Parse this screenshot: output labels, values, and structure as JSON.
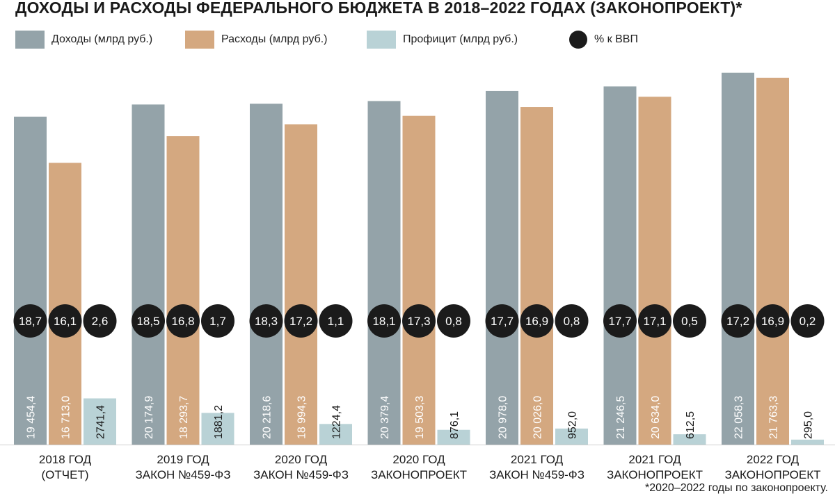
{
  "title": "ДОХОДЫ И РАСХОДЫ ФЕДЕРАЛЬНОГО БЮДЖЕТА В 2018–2022 ГОДАХ (ЗАКОНОПРОЕКТ)*",
  "legend": {
    "income": "Доходы (млрд руб.)",
    "expense": "Расходы (млрд руб.)",
    "surplus": "Профицит (млрд руб.)",
    "gdp": "% к ВВП"
  },
  "colors": {
    "income": "#94a3a9",
    "expense": "#d4a880",
    "surplus": "#b9d2d6",
    "gdp": "#1b1b1b"
  },
  "footnote": "*2020–2022 годы по законопроекту.",
  "chart_data": {
    "type": "bar",
    "title": "ДОХОДЫ И РАСХОДЫ ФЕДЕРАЛЬНОГО БЮДЖЕТА В 2018–2022 ГОДАХ (ЗАКОНОПРОЕКТ)*",
    "categories": [
      [
        "2018 ГОД",
        "(ОТЧЕТ)"
      ],
      [
        "2019 ГОД",
        "ЗАКОН №459-ФЗ"
      ],
      [
        "2020 ГОД",
        "ЗАКОН №459-ФЗ"
      ],
      [
        "2020 ГОД",
        "ЗАКОНОПРОЕКТ"
      ],
      [
        "2021 ГОД",
        "ЗАКОН №459-ФЗ"
      ],
      [
        "2021 ГОД",
        "ЗАКОНОПРОЕКТ"
      ],
      [
        "2022 ГОД",
        "ЗАКОНОПРОЕКТ"
      ]
    ],
    "series": [
      {
        "name": "Доходы (млрд руб.)",
        "key": "income",
        "values": [
          19454.4,
          20174.9,
          20218.6,
          20379.4,
          20978.0,
          21246.5,
          22058.3
        ],
        "labels": [
          "19 454,4",
          "20 174,9",
          "20 218,6",
          "20 379,4",
          "20 978,0",
          "21 246,5",
          "22 058,3"
        ],
        "gdp_pct": [
          "18,7",
          "18,5",
          "18,3",
          "18,1",
          "17,7",
          "17,7",
          "17,2"
        ]
      },
      {
        "name": "Расходы (млрд руб.)",
        "key": "expense",
        "values": [
          16713.0,
          18293.7,
          18994.3,
          19503.3,
          20026.0,
          20634.0,
          21763.3
        ],
        "labels": [
          "16 713,0",
          "18 293,7",
          "18 994,3",
          "19 503,3",
          "20 026,0",
          "20 634,0",
          "21 763,3"
        ],
        "gdp_pct": [
          "16,1",
          "16,8",
          "17,2",
          "17,3",
          "16,9",
          "17,1",
          "16,9"
        ]
      },
      {
        "name": "Профицит (млрд руб.)",
        "key": "surplus",
        "values": [
          2741.4,
          1881.2,
          1224.4,
          876.1,
          952.0,
          612.5,
          295.0
        ],
        "labels": [
          "2741,4",
          "1881,2",
          "1224,4",
          "876,1",
          "952,0",
          "612,5",
          "295,0"
        ],
        "gdp_pct": [
          "2,6",
          "1,7",
          "1,1",
          "0,8",
          "0,8",
          "0,5",
          "0,2"
        ]
      }
    ],
    "gdp_legend": "% к ВВП",
    "ylim": [
      0,
      22500
    ],
    "grid": false,
    "legend_position": "top-left"
  }
}
